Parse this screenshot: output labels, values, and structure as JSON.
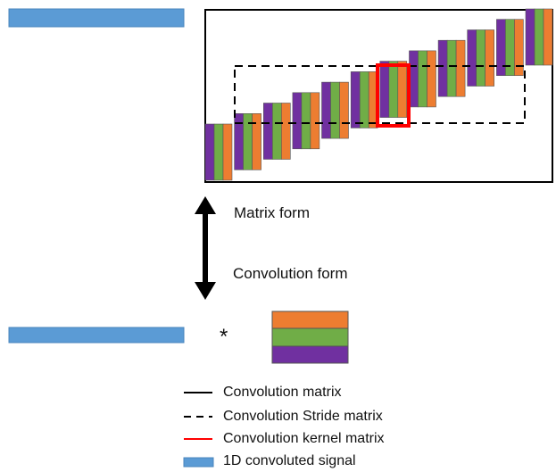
{
  "colors": {
    "signal": "#5b9bd5",
    "signal_border": "#4a86bd",
    "kernel_top": "#ed7d31",
    "kernel_middle": "#70ad47",
    "kernel_bottom": "#7030a0",
    "matrix_outline": "#000000",
    "kernel_highlight": "#ff0000"
  },
  "labels": {
    "matrix_form": "Matrix form",
    "convolution_form": "Convolution form",
    "operator": "*"
  },
  "legend": [
    {
      "key": "conv-matrix",
      "style": "solid-black",
      "label": "Convolution matrix"
    },
    {
      "key": "stride-matrix",
      "style": "dashed-black",
      "label": "Convolution Stride matrix"
    },
    {
      "key": "kernel-matrix",
      "style": "solid-red",
      "label": "Convolution kernel matrix"
    },
    {
      "key": "signal",
      "style": "blue-box",
      "label": "1D convoluted signal"
    }
  ],
  "icons": [
    "double-arrow-icon"
  ]
}
